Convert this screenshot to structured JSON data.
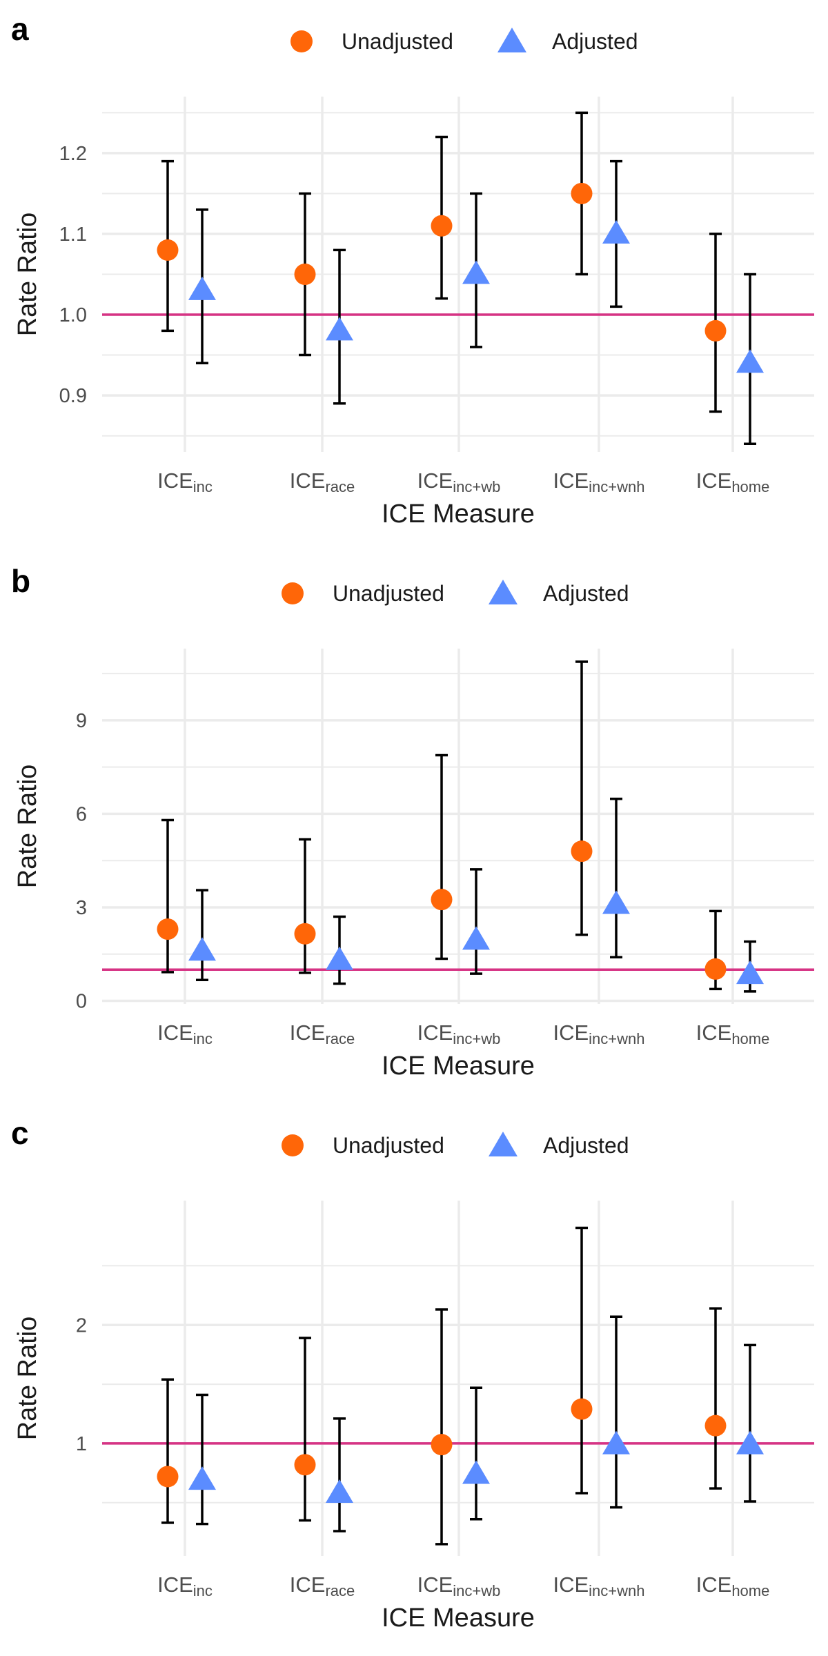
{
  "colors": {
    "unadjusted": "#ff6608",
    "adjusted": "#5b8cff",
    "reference_line": "#d63384",
    "grid": "#ebebeb",
    "errorbar": "#000000",
    "text": "#1a1a1a",
    "tick_text": "#4d4d4d"
  },
  "legend": {
    "items": [
      "Unadjusted",
      "Adjusted"
    ],
    "position": "top"
  },
  "chart_data": [
    {
      "panel_label": "a",
      "type": "scatter",
      "xlabel": "ICE Measure",
      "ylabel": "Rate Ratio",
      "categories": [
        {
          "base": "ICE",
          "sub": "inc"
        },
        {
          "base": "ICE",
          "sub": "race"
        },
        {
          "base": "ICE",
          "sub": "inc+wb"
        },
        {
          "base": "ICE",
          "sub": "inc+wnh"
        },
        {
          "base": "ICE",
          "sub": "home"
        }
      ],
      "ylim": [
        0.83,
        1.27
      ],
      "yticks": [
        0.9,
        1.0,
        1.1,
        1.2
      ],
      "ytick_labels": [
        "0.9",
        "1.0",
        "1.1",
        "1.2"
      ],
      "reference_line": 1.0,
      "series": [
        {
          "name": "Unadjusted",
          "marker": "circle",
          "values": [
            1.08,
            1.05,
            1.11,
            1.15,
            0.98
          ],
          "lower": [
            0.98,
            0.95,
            1.02,
            1.05,
            0.88
          ],
          "upper": [
            1.19,
            1.15,
            1.22,
            1.25,
            1.1
          ]
        },
        {
          "name": "Adjusted",
          "marker": "triangle",
          "values": [
            1.03,
            0.98,
            1.05,
            1.1,
            0.94
          ],
          "lower": [
            0.94,
            0.89,
            0.96,
            1.01,
            0.84
          ],
          "upper": [
            1.13,
            1.08,
            1.15,
            1.19,
            1.05
          ]
        }
      ],
      "grid": true
    },
    {
      "panel_label": "b",
      "type": "scatter",
      "xlabel": "ICE Measure",
      "ylabel": "Rate Ratio",
      "categories": [
        {
          "base": "ICE",
          "sub": "inc"
        },
        {
          "base": "ICE",
          "sub": "race"
        },
        {
          "base": "ICE",
          "sub": "inc+wb"
        },
        {
          "base": "ICE",
          "sub": "inc+wnh"
        },
        {
          "base": "ICE",
          "sub": "home"
        }
      ],
      "ylim": [
        -0.1,
        11.3
      ],
      "yticks": [
        0,
        3,
        6,
        9
      ],
      "ytick_labels": [
        "0",
        "3",
        "6",
        "9"
      ],
      "reference_line": 1.0,
      "series": [
        {
          "name": "Unadjusted",
          "marker": "circle",
          "values": [
            2.3,
            2.15,
            3.25,
            4.8,
            1.02
          ],
          "lower": [
            0.92,
            0.9,
            1.35,
            2.12,
            0.38
          ],
          "upper": [
            5.8,
            5.18,
            7.88,
            10.88,
            2.88
          ]
        },
        {
          "name": "Adjusted",
          "marker": "triangle",
          "values": [
            1.6,
            1.3,
            1.95,
            3.1,
            0.85
          ],
          "lower": [
            0.67,
            0.55,
            0.87,
            1.4,
            0.3
          ],
          "upper": [
            3.55,
            2.7,
            4.22,
            6.48,
            1.9
          ]
        }
      ],
      "grid": true
    },
    {
      "panel_label": "c",
      "type": "scatter",
      "xlabel": "ICE Measure",
      "ylabel": "Rate Ratio",
      "categories": [
        {
          "base": "ICE",
          "sub": "inc"
        },
        {
          "base": "ICE",
          "sub": "race"
        },
        {
          "base": "ICE",
          "sub": "inc+wb"
        },
        {
          "base": "ICE",
          "sub": "inc+wnh"
        },
        {
          "base": "ICE",
          "sub": "home"
        }
      ],
      "ylim": [
        0.05,
        3.05
      ],
      "yticks": [
        1,
        2
      ],
      "ytick_labels": [
        "1",
        "2"
      ],
      "reference_line": 1.0,
      "series": [
        {
          "name": "Unadjusted",
          "marker": "circle",
          "values": [
            0.72,
            0.82,
            0.99,
            1.29,
            1.15
          ],
          "lower": [
            0.33,
            0.35,
            0.15,
            0.58,
            0.62
          ],
          "upper": [
            1.54,
            1.89,
            2.13,
            2.82,
            2.14
          ]
        },
        {
          "name": "Adjusted",
          "marker": "triangle",
          "values": [
            0.69,
            0.58,
            0.74,
            0.99,
            0.99
          ],
          "lower": [
            0.32,
            0.26,
            0.36,
            0.46,
            0.51
          ],
          "upper": [
            1.41,
            1.21,
            1.47,
            2.07,
            1.83
          ]
        }
      ],
      "grid": true
    }
  ]
}
